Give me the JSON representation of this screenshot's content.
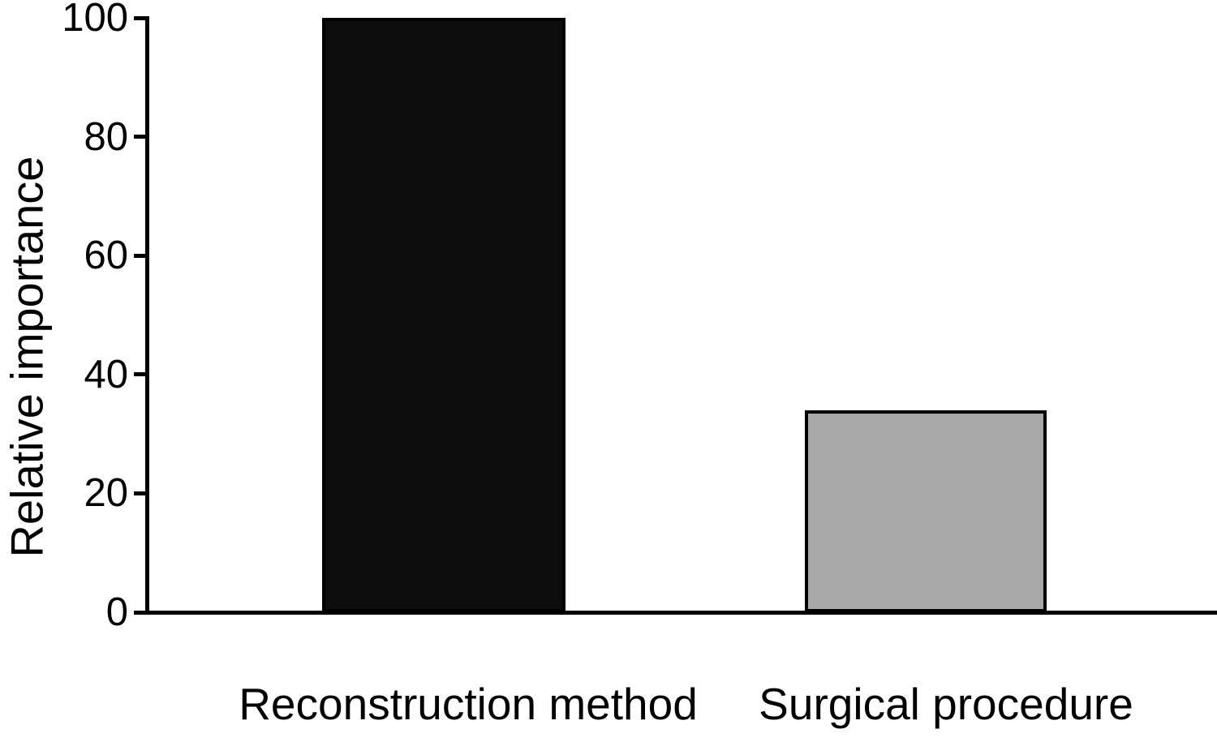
{
  "chart_data": {
    "type": "bar",
    "title": "",
    "xlabel": "",
    "ylabel": "Relative importance",
    "categories": [
      "Reconstruction method",
      "Surgical procedure"
    ],
    "values": [
      100,
      34
    ],
    "yticks": [
      0,
      20,
      40,
      60,
      80,
      100
    ],
    "ylim": [
      0,
      100
    ],
    "bar_colors": [
      "#0d0d0d",
      "#a8a8a8"
    ],
    "bar_border_color": "#000000",
    "axis_color": "#000000",
    "grid": false,
    "legend": "none",
    "background_color": "#ffffff"
  }
}
